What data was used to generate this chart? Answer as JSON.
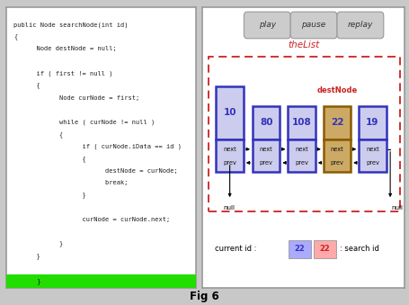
{
  "title": "Fig 6",
  "fig_width": 4.55,
  "fig_height": 3.39,
  "bg_color": "#c8c8c8",
  "left_panel": {
    "bg": "#ffffff",
    "border_color": "#999999",
    "code_lines": [
      "public Node searchNode(int id)",
      "{",
      "      Node destNode = null;",
      "",
      "      if ( first != null )",
      "      {",
      "            Node curNode = first;",
      "",
      "            while ( curNode != null )",
      "            {",
      "                  if ( curNode.iData == id )",
      "                  {",
      "                        destNode = curNode;",
      "                        break;",
      "                  }",
      "",
      "                  curNode = curNode.next;",
      "",
      "            }",
      "      }"
    ],
    "highlight_color": "#22dd00",
    "highlight_text": "      }"
  },
  "right_panel": {
    "bg": "#ffffff",
    "border_color": "#999999",
    "buttons": [
      "play",
      "pause",
      "replay"
    ],
    "button_bg": "#cccccc",
    "button_border": "#999999",
    "thelist_label": "theList",
    "thelist_color": "#cc2222",
    "dashed_rect_color": "#cc2222",
    "dest_node_label": "destNode",
    "dest_node_label_color": "#cc2222",
    "node_border_color": "#3333bb",
    "node_fill_color": "#ccccee",
    "dest_border_color": "#8B5A00",
    "dest_fill_color": "#ccaa66",
    "node_value_color": "#3333bb",
    "current_id_label": "current id :",
    "current_id_value": "22",
    "current_id_box": "#aaaaff",
    "search_id_value": "22",
    "search_id_box": "#ffaaaa",
    "search_id_box_text_color": "#cc2222",
    "search_id_label": ": search id",
    "null_label": "null"
  }
}
